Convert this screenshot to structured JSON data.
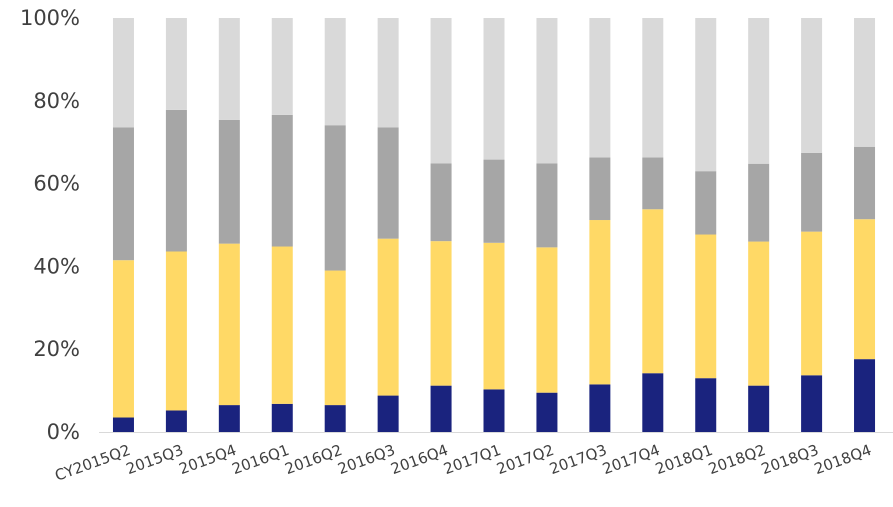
{
  "chart_data": {
    "type": "bar",
    "stacked": true,
    "normalized": true,
    "categories": [
      "CY2015Q2",
      "2015Q3",
      "2015Q4",
      "2016Q1",
      "2016Q2",
      "2016Q3",
      "2016Q4",
      "2017Q1",
      "2017Q2",
      "2017Q3",
      "2017Q4",
      "2018Q1",
      "2018Q2",
      "2018Q3",
      "2018Q4"
    ],
    "series": [
      {
        "color": "#1a237e",
        "values": [
          3.5,
          5.2,
          6.5,
          6.8,
          6.5,
          8.8,
          11.2,
          10.3,
          9.5,
          11.5,
          14.2,
          13.0,
          11.2,
          13.7,
          17.6
        ]
      },
      {
        "color": "#ffd966",
        "values": [
          38.0,
          38.4,
          39.0,
          38.0,
          32.5,
          37.9,
          34.9,
          35.4,
          35.1,
          39.7,
          39.6,
          34.7,
          34.8,
          34.7,
          33.8
        ]
      },
      {
        "color": "#a6a6a6",
        "values": [
          32.1,
          34.2,
          29.9,
          31.8,
          35.1,
          26.9,
          18.8,
          20.1,
          20.3,
          15.1,
          12.5,
          15.3,
          18.8,
          19.0,
          17.5
        ]
      },
      {
        "color": "#d9d9d9",
        "values": [
          26.4,
          22.2,
          24.6,
          23.4,
          25.9,
          26.4,
          35.1,
          34.2,
          35.1,
          33.7,
          33.7,
          37.0,
          35.2,
          32.6,
          31.1
        ]
      }
    ],
    "yticks": [
      "0%",
      "20%",
      "40%",
      "60%",
      "80%",
      "100%"
    ],
    "ylim": [
      0,
      100
    ],
    "grid": false,
    "legend": "none"
  }
}
